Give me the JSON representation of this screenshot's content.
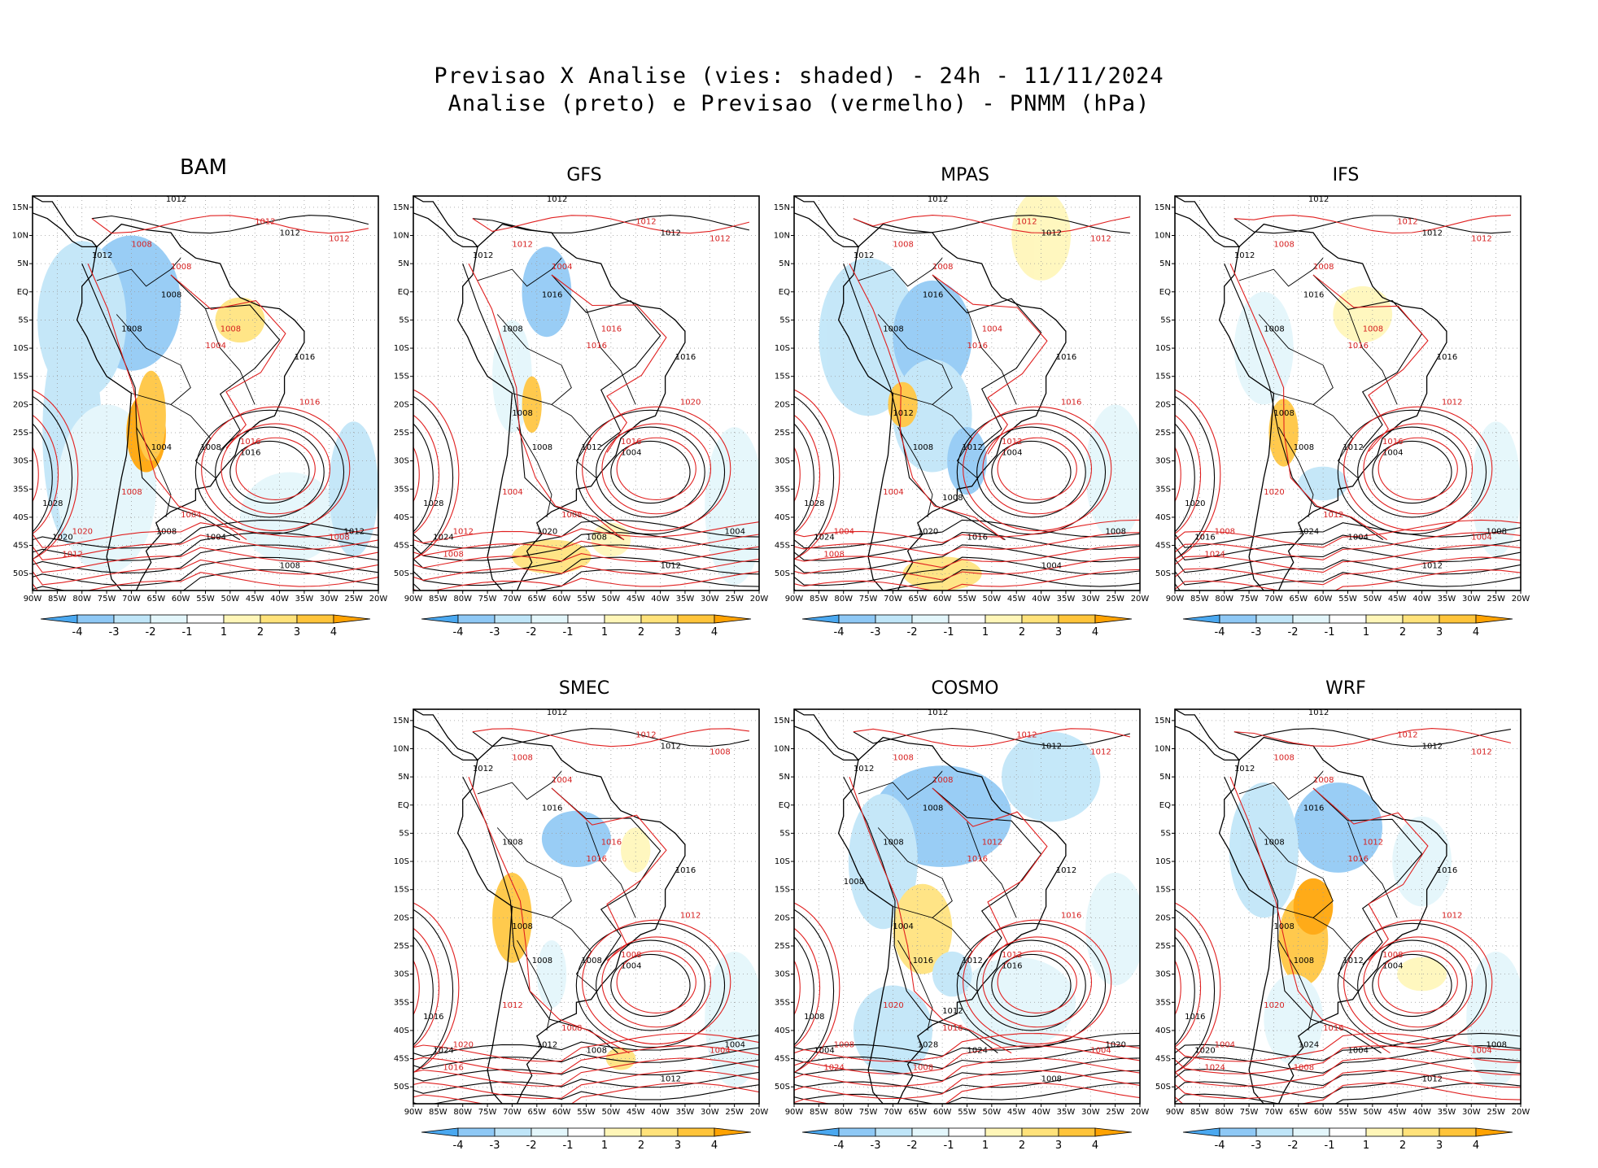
{
  "header": {
    "title_line1": "Previsao X Analise (vies: shaded) - 24h - 11/11/2024",
    "title_line2": "Analise (preto) e Previsao (vermelho) - PNMM (hPa)"
  },
  "axes": {
    "lat_labels": [
      "15N",
      "10N",
      "5N",
      "EQ",
      "5S",
      "10S",
      "15S",
      "20S",
      "25S",
      "30S",
      "35S",
      "40S",
      "45S",
      "50S"
    ],
    "lon_labels": [
      "90W",
      "85W",
      "80W",
      "75W",
      "70W",
      "65W",
      "60W",
      "55W",
      "50W",
      "45W",
      "40W",
      "35W",
      "30W",
      "25W",
      "20W"
    ]
  },
  "colorbar": {
    "labels": [
      "-4",
      "-3",
      "-2",
      "-1",
      "1",
      "2",
      "3",
      "4"
    ],
    "colors": [
      "#4aa8f0",
      "#8ec8f5",
      "#bfe5f8",
      "#e3f6fb",
      "#ffffff",
      "#fff6b8",
      "#ffe27a",
      "#ffc43a",
      "#ffa200"
    ]
  },
  "panels": [
    {
      "name": "BAM",
      "isobars_black": [
        "1012",
        "1012",
        "1012",
        "1008",
        "1008",
        "1016",
        "1016",
        "1004",
        "1008",
        "1028",
        "1020",
        "1008",
        "1004",
        "1012",
        "1008"
      ],
      "isobars_red": [
        "1012",
        "1012",
        "1008",
        "1008",
        "1008",
        "1004",
        "1016",
        "1016",
        "1020",
        "1012",
        "1008",
        "1004",
        "1008"
      ]
    },
    {
      "name": "GFS",
      "isobars_black": [
        "1012",
        "1012",
        "1012",
        "1008",
        "1016",
        "1016",
        "1004",
        "1008",
        "1012",
        "1028",
        "1024",
        "1020",
        "1008",
        "1004",
        "1012",
        "1008"
      ],
      "isobars_red": [
        "1012",
        "1012",
        "1012",
        "1004",
        "1016",
        "1016",
        "1020",
        "1016",
        "1012",
        "1008",
        "1004",
        "1008"
      ]
    },
    {
      "name": "MPAS",
      "isobars_black": [
        "1012",
        "1012",
        "1012",
        "1008",
        "1016",
        "1016",
        "1004",
        "1008",
        "1012",
        "1028",
        "1024",
        "1020",
        "1016",
        "1008",
        "1004",
        "1012",
        "1008"
      ],
      "isobars_red": [
        "1012",
        "1012",
        "1008",
        "1008",
        "1004",
        "1016",
        "1016",
        "1012",
        "1004",
        "1008",
        "1004"
      ]
    },
    {
      "name": "IFS",
      "isobars_black": [
        "1012",
        "1012",
        "1012",
        "1008",
        "1016",
        "1016",
        "1004",
        "1008",
        "1012",
        "1020",
        "1016",
        "1024",
        "1004",
        "1008",
        "1012",
        "1008"
      ],
      "isobars_red": [
        "1012",
        "1012",
        "1008",
        "1008",
        "1008",
        "1016",
        "1012",
        "1016",
        "1008",
        "1024",
        "1020",
        "1012",
        "1004"
      ]
    },
    {
      "name": "SMEC",
      "isobars_black": [
        "1012",
        "1012",
        "1012",
        "1008",
        "1016",
        "1016",
        "1004",
        "1008",
        "1008",
        "1016",
        "1024",
        "1012",
        "1008",
        "1004",
        "1012",
        "1008"
      ],
      "isobars_red": [
        "1012",
        "1008",
        "1008",
        "1004",
        "1016",
        "1016",
        "1012",
        "1008",
        "1020",
        "1016",
        "1012",
        "1008",
        "1004"
      ]
    },
    {
      "name": "COSMO",
      "isobars_black": [
        "1012",
        "1012",
        "1012",
        "1008",
        "1008",
        "1012",
        "1016",
        "1016",
        "1012",
        "1008",
        "1004",
        "1028",
        "1024",
        "1020",
        "1008",
        "1004",
        "1012",
        "1008"
      ],
      "isobars_red": [
        "1012",
        "1012",
        "1008",
        "1008",
        "1012",
        "1016",
        "1016",
        "1012",
        "1008",
        "1024",
        "1020",
        "1016",
        "1004",
        "1008"
      ]
    },
    {
      "name": "WRF",
      "isobars_black": [
        "1012",
        "1012",
        "1012",
        "1008",
        "1016",
        "1016",
        "1004",
        "1008",
        "1012",
        "1016",
        "1020",
        "1024",
        "1004",
        "1008",
        "1012",
        "1008"
      ],
      "isobars_red": [
        "1012",
        "1012",
        "1008",
        "1008",
        "1012",
        "1016",
        "1012",
        "1008",
        "1004",
        "1024",
        "1020",
        "1016",
        "1004",
        "1008"
      ]
    }
  ]
}
